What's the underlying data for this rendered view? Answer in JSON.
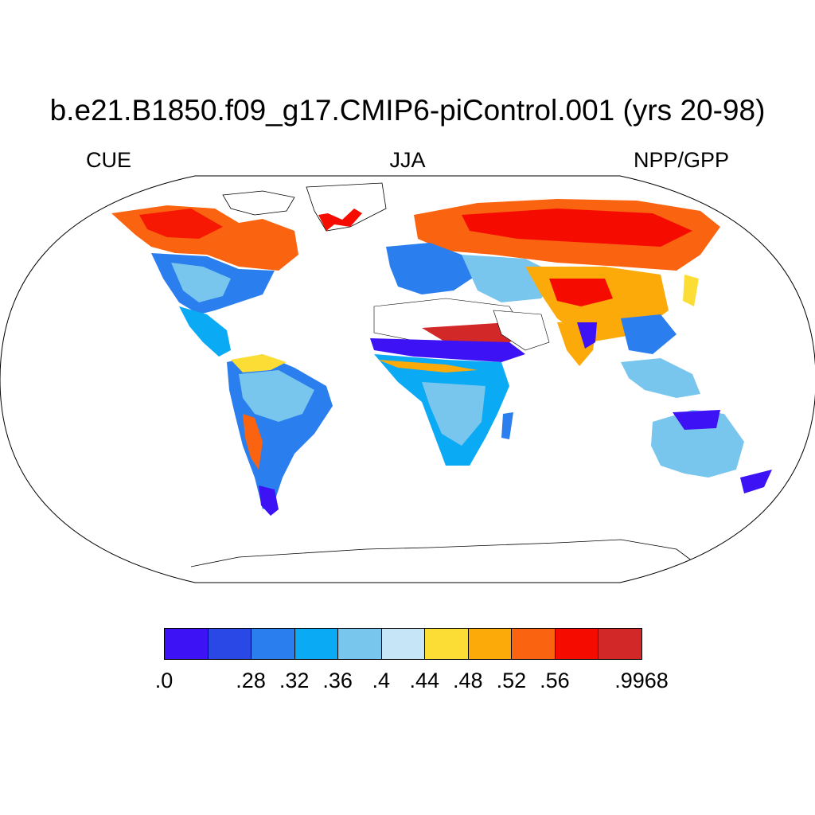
{
  "title": "b.e21.B1850.f09_g17.CMIP6-piControl.001 (yrs 20-98)",
  "subtitle_left": "CUE",
  "subtitle_center": "JJA",
  "subtitle_right": "NPP/GPP",
  "colorbar": {
    "colors": [
      "#3d12f5",
      "#2a48e6",
      "#2a7eee",
      "#0aaaf5",
      "#78c6ee",
      "#c6e6f8",
      "#fbdd36",
      "#fbaa0a",
      "#fa6410",
      "#f50b00",
      "#d22828"
    ],
    "labels": [
      ".0",
      ".28",
      ".32",
      ".36",
      ".4",
      ".44",
      ".48",
      ".52",
      ".56",
      ".9968"
    ],
    "label_boundaries": [
      0,
      2,
      3,
      4,
      5,
      6,
      7,
      8,
      9,
      11
    ]
  }
}
